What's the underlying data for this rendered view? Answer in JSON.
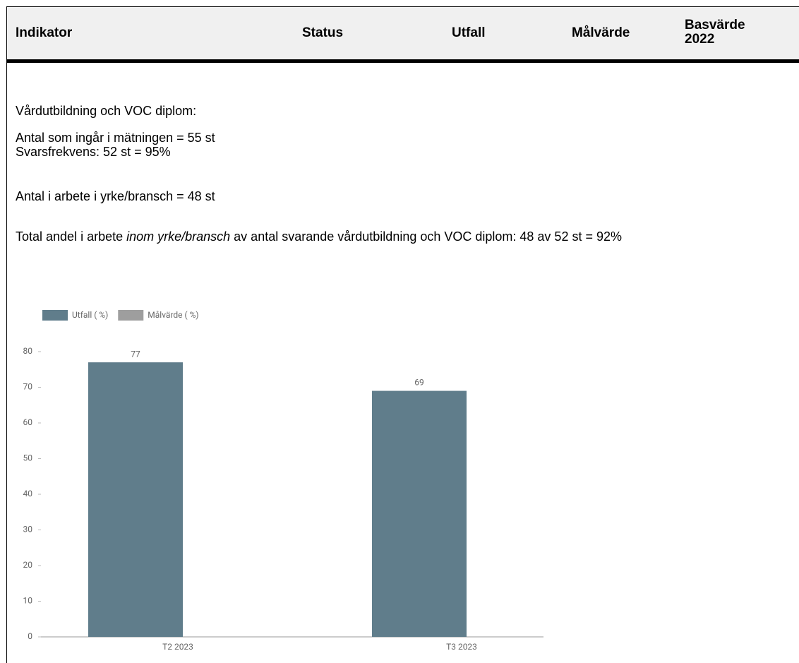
{
  "table": {
    "headers": [
      "Indikator",
      "Status",
      "Utfall",
      "Målvärde",
      "Basvärde 2022"
    ]
  },
  "paragraphs": [
    "Vårdutbildning och VOC diplom:",
    "Antal som ingår i mätningen = 55 st",
    "Svarsfrekvens: 52 st = 95%",
    "Antal i arbete i yrke/bransch = 48 st"
  ],
  "summary": [
    "Total andel i arbete ",
    "inom yrke/bransch",
    " av antal svarande vårdutbildning och VOC diplom: 48 av 52 st = 92%"
  ],
  "chart_data": {
    "type": "bar",
    "categories": [
      "T2 2023",
      "T3 2023"
    ],
    "series": [
      {
        "name": "Utfall ( %)",
        "color": "#607d8b",
        "values": [
          77,
          69
        ]
      },
      {
        "name": "Målvärde ( %)",
        "color": "#9e9e9e",
        "values": [
          null,
          null
        ]
      }
    ],
    "ylim": [
      0,
      80
    ],
    "yticks": [
      0,
      10,
      20,
      30,
      40,
      50,
      60,
      70,
      80
    ],
    "grid": false
  }
}
